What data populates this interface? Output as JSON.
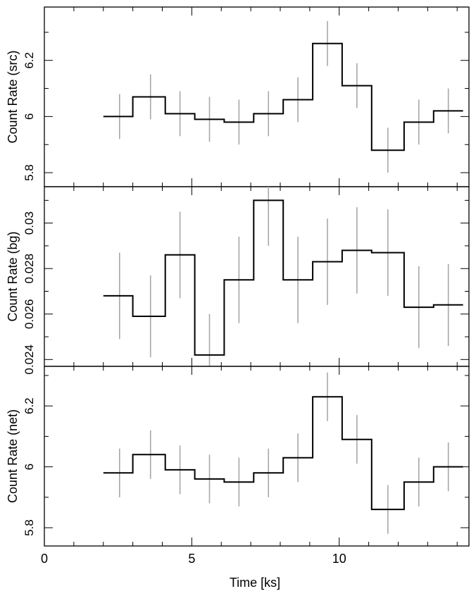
{
  "chart_data": {
    "type": "line",
    "x_bins": [
      [
        2.0,
        3.0
      ],
      [
        3.0,
        4.1
      ],
      [
        4.1,
        5.1
      ],
      [
        5.1,
        6.1
      ],
      [
        6.1,
        7.1
      ],
      [
        7.1,
        8.1
      ],
      [
        8.1,
        9.1
      ],
      [
        9.1,
        10.1
      ],
      [
        10.1,
        11.1
      ],
      [
        11.1,
        12.2
      ],
      [
        12.2,
        13.2
      ],
      [
        13.2,
        14.2
      ]
    ],
    "x_centers": [
      2.55,
      3.6,
      4.6,
      5.6,
      6.6,
      7.6,
      8.6,
      9.6,
      10.6,
      11.65,
      12.7,
      13.7
    ],
    "xlabel": "Time [ks]",
    "xlim": [
      0,
      14.4
    ],
    "x_ticks": [
      0,
      5,
      10
    ],
    "panels": [
      {
        "ylabel": "Count Rate (src)",
        "ylim": [
          5.75,
          6.39
        ],
        "y_ticks": [
          5.8,
          6,
          6.2
        ],
        "y_tick_labels": [
          "5.8",
          "6",
          "6.2"
        ],
        "values": [
          6.0,
          6.07,
          6.01,
          5.99,
          5.98,
          6.01,
          6.06,
          6.26,
          6.11,
          5.88,
          5.98,
          6.02
        ],
        "errors": [
          0.08,
          0.08,
          0.08,
          0.08,
          0.08,
          0.08,
          0.08,
          0.08,
          0.08,
          0.08,
          0.08,
          0.08
        ]
      },
      {
        "ylabel": "Count Rate (bg)",
        "ylim": [
          0.0237,
          0.0316
        ],
        "y_ticks": [
          0.024,
          0.026,
          0.028,
          0.03
        ],
        "y_tick_labels": [
          "0.024",
          "0.026",
          "0.028",
          "0.03"
        ],
        "values": [
          0.0268,
          0.0259,
          0.0286,
          0.0242,
          0.0275,
          0.031,
          0.0275,
          0.0283,
          0.0288,
          0.0287,
          0.0263,
          0.0264
        ],
        "errors": [
          0.0019,
          0.0018,
          0.0019,
          0.0018,
          0.0019,
          0.002,
          0.0019,
          0.0019,
          0.0019,
          0.0019,
          0.0018,
          0.0018
        ]
      },
      {
        "ylabel": "Count Rate (net)",
        "ylim": [
          5.74,
          6.33
        ],
        "y_ticks": [
          5.8,
          6,
          6.2
        ],
        "y_tick_labels": [
          "5.8",
          "6",
          "6.2"
        ],
        "values": [
          5.98,
          6.04,
          5.99,
          5.96,
          5.95,
          5.98,
          6.03,
          6.23,
          6.09,
          5.86,
          5.95,
          6.0
        ],
        "errors": [
          0.08,
          0.08,
          0.08,
          0.08,
          0.08,
          0.08,
          0.08,
          0.08,
          0.08,
          0.08,
          0.08,
          0.08
        ]
      }
    ],
    "step_color": "#000000",
    "error_color": "#a8a8a8",
    "grid": false
  }
}
